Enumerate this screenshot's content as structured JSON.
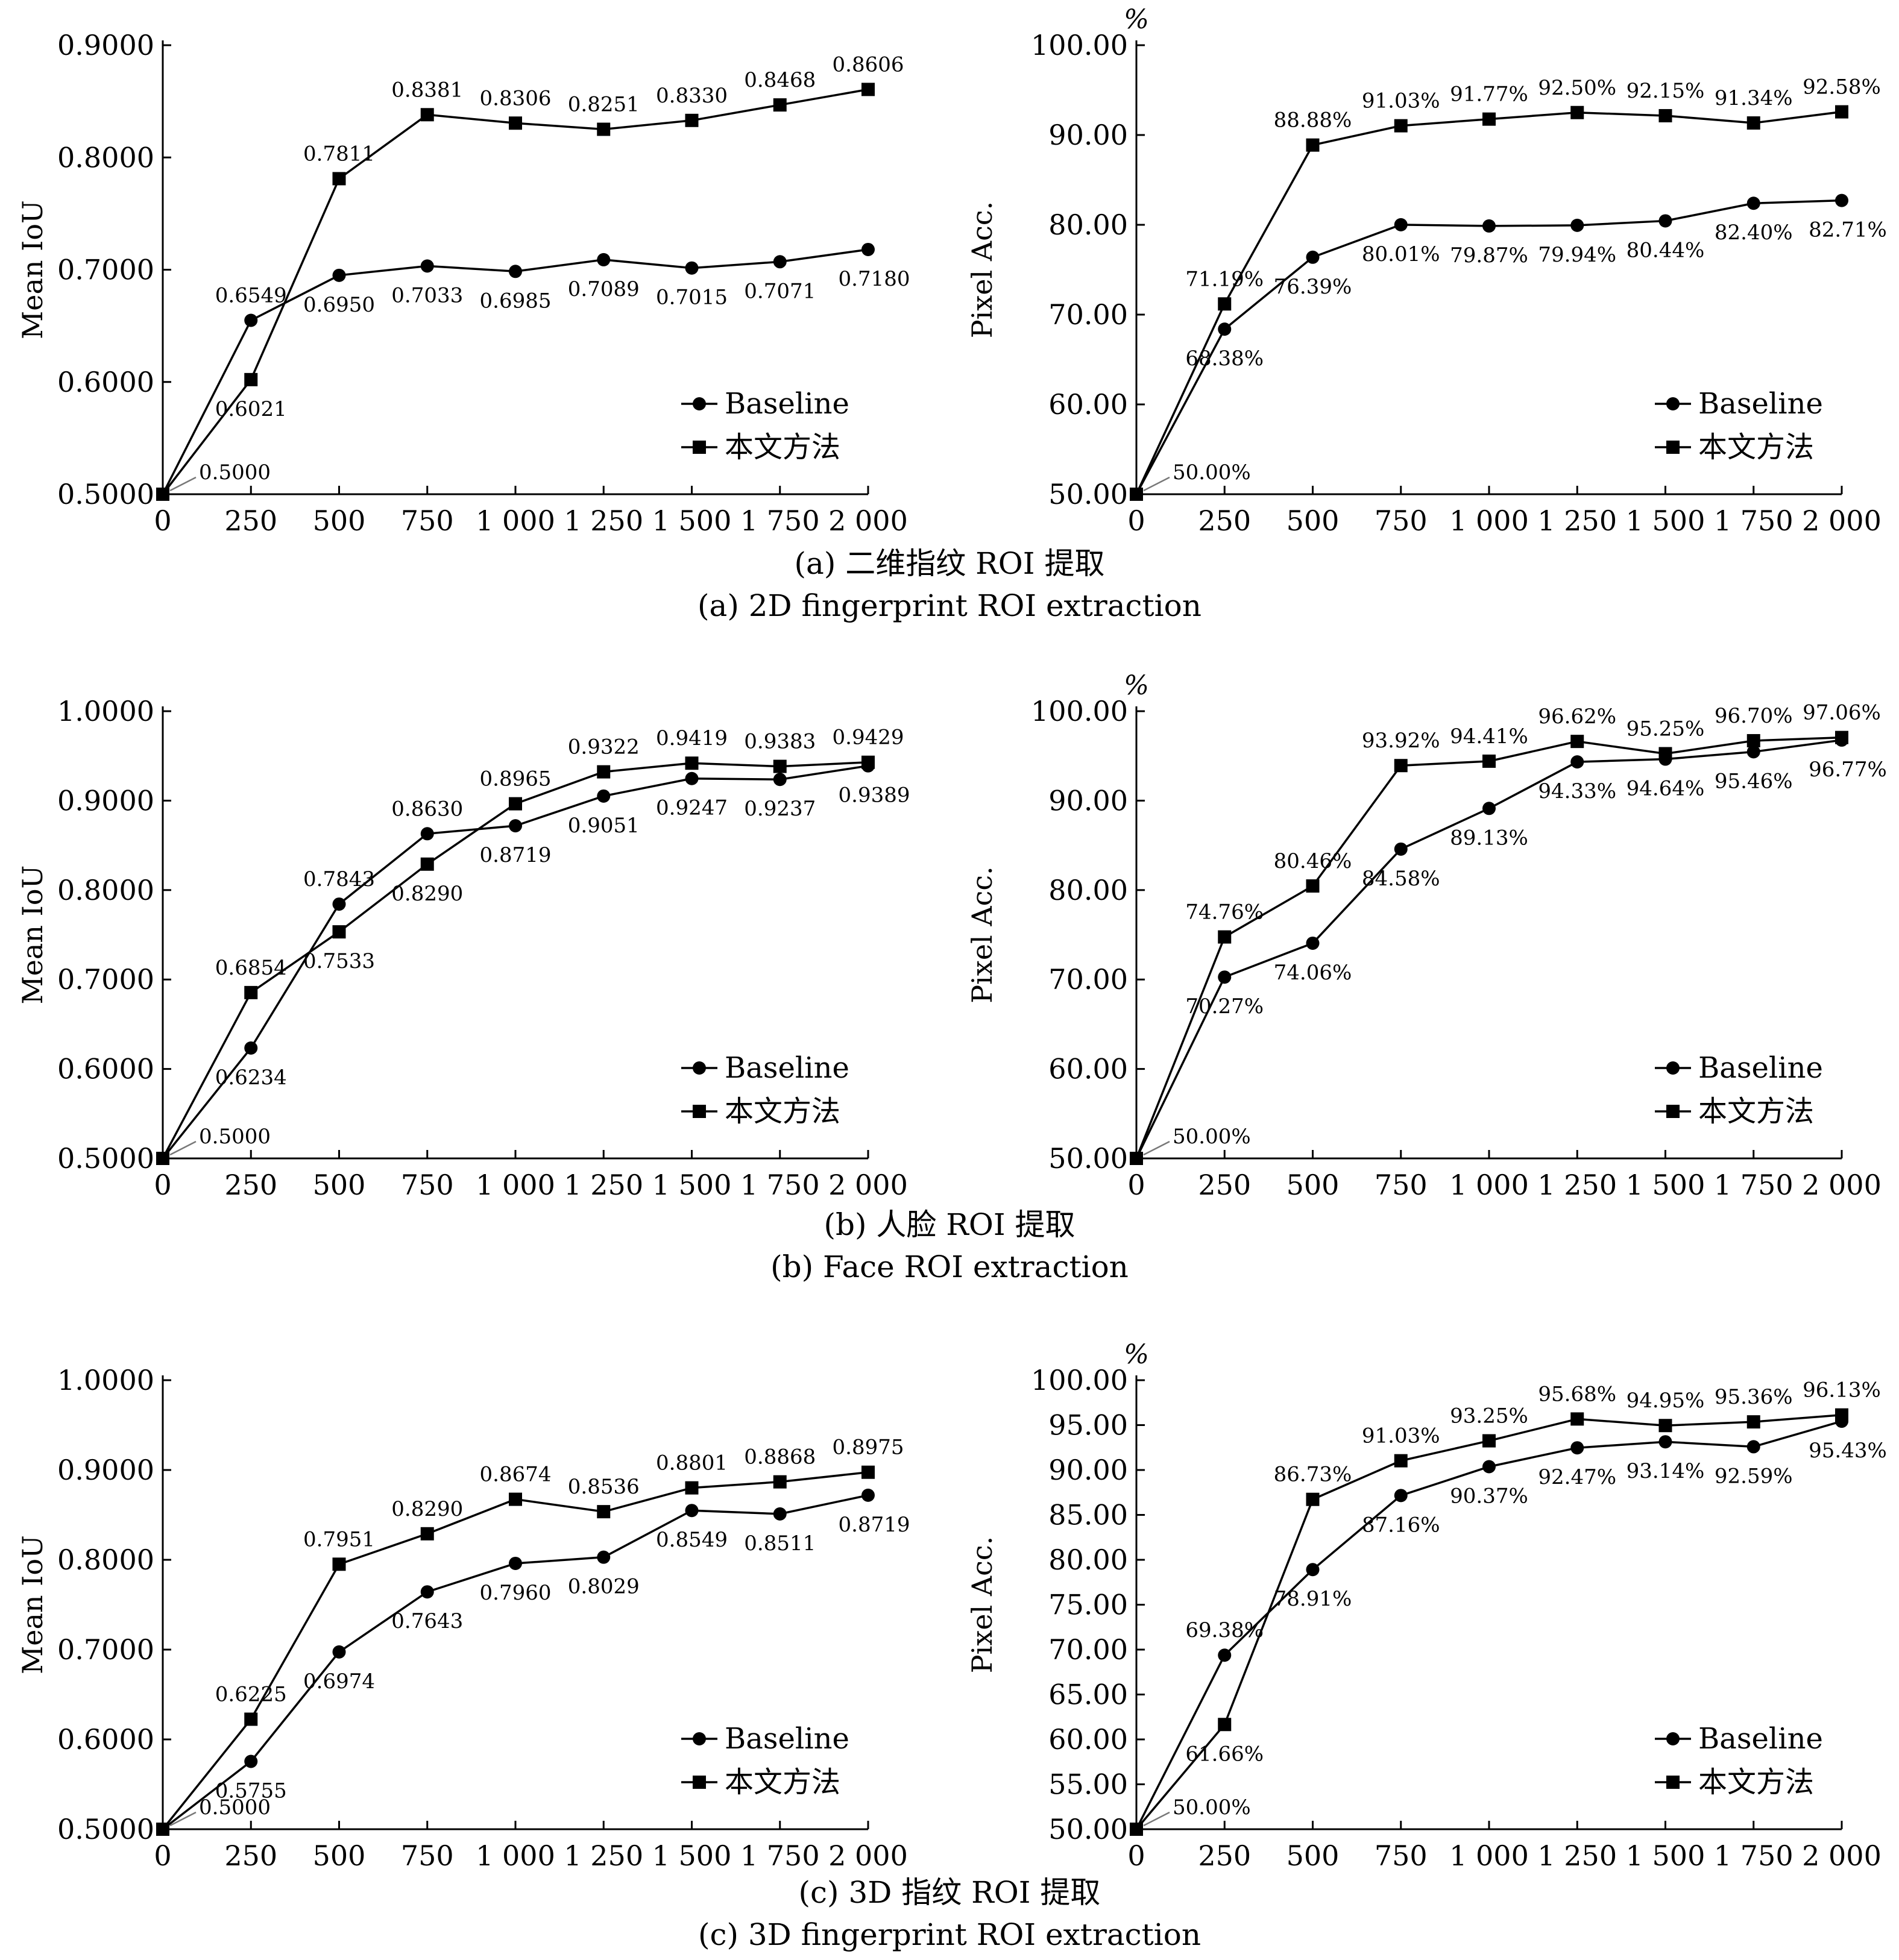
{
  "legend": {
    "baseline": "Baseline",
    "ours": "本文方法"
  },
  "panels": [
    {
      "cn_caption": "(a) 二维指纹 ROI 提取",
      "en_caption": "(a) 2D fingerprint ROI extraction",
      "charts": [
        {
          "type": "line",
          "ylabel": "Mean IoU",
          "unit": "",
          "xlim": [
            0,
            2000
          ],
          "ylim": [
            0.5,
            0.9
          ],
          "xticks": [
            "0",
            "250",
            "500",
            "750",
            "1 000",
            "1 250",
            "1 500",
            "1 750",
            "2 000"
          ],
          "yticks": [
            "0.5000",
            "0.6000",
            "0.7000",
            "0.8000",
            "0.9000"
          ],
          "x": [
            0,
            250,
            500,
            750,
            1000,
            1250,
            1500,
            1750,
            2000
          ],
          "series": [
            {
              "name": "Baseline",
              "marker": "circle",
              "values": [
                0.5,
                0.6549,
                0.695,
                0.7033,
                0.6985,
                0.7089,
                0.7015,
                0.7071,
                0.718
              ],
              "labels": [
                "0.5000",
                "0.6549",
                "0.6950",
                "0.7033",
                "0.6985",
                "0.7089",
                "0.7015",
                "0.7071",
                "0.7180"
              ]
            },
            {
              "name": "本文方法",
              "marker": "square",
              "values": [
                0.5,
                0.6021,
                0.7811,
                0.8381,
                0.8306,
                0.8251,
                0.833,
                0.8468,
                0.8606
              ],
              "labels": [
                "",
                "0.6021",
                "0.7811",
                "0.8381",
                "0.8306",
                "0.8251",
                "0.8330",
                "0.8468",
                "0.8606"
              ]
            }
          ]
        },
        {
          "type": "line",
          "ylabel": "Pixel Acc.",
          "unit": "%",
          "xlim": [
            0,
            2000
          ],
          "ylim": [
            50,
            100
          ],
          "xticks": [
            "0",
            "250",
            "500",
            "750",
            "1 000",
            "1 250",
            "1 500",
            "1 750",
            "2 000"
          ],
          "yticks": [
            "50.00",
            "60.00",
            "70.00",
            "80.00",
            "90.00",
            "100.00"
          ],
          "x": [
            0,
            250,
            500,
            750,
            1000,
            1250,
            1500,
            1750,
            2000
          ],
          "series": [
            {
              "name": "Baseline",
              "marker": "circle",
              "values": [
                50.0,
                68.38,
                76.39,
                80.01,
                79.87,
                79.94,
                80.44,
                82.4,
                82.71
              ],
              "labels": [
                "50.00%",
                "68.38%",
                "76.39%",
                "80.01%",
                "79.87%",
                "79.94%",
                "80.44%",
                "82.40%",
                "82.71%"
              ]
            },
            {
              "name": "本文方法",
              "marker": "square",
              "values": [
                50.0,
                71.19,
                88.88,
                91.03,
                91.77,
                92.5,
                92.15,
                91.34,
                92.58
              ],
              "labels": [
                "",
                "71.19%",
                "88.88%",
                "91.03%",
                "91.77%",
                "92.50%",
                "92.15%",
                "91.34%",
                "92.58%"
              ]
            }
          ]
        }
      ]
    },
    {
      "cn_caption": "(b) 人脸 ROI 提取",
      "en_caption": "(b) Face ROI extraction",
      "charts": [
        {
          "type": "line",
          "ylabel": "Mean IoU",
          "unit": "",
          "xlim": [
            0,
            2000
          ],
          "ylim": [
            0.5,
            1.0
          ],
          "xticks": [
            "0",
            "250",
            "500",
            "750",
            "1 000",
            "1 250",
            "1 500",
            "1 750",
            "2 000"
          ],
          "yticks": [
            "0.5000",
            "0.6000",
            "0.7000",
            "0.8000",
            "0.9000",
            "1.0000"
          ],
          "x": [
            0,
            250,
            500,
            750,
            1000,
            1250,
            1500,
            1750,
            2000
          ],
          "series": [
            {
              "name": "Baseline",
              "marker": "circle",
              "values": [
                0.5,
                0.6234,
                0.7843,
                0.863,
                0.8719,
                0.9051,
                0.9247,
                0.9237,
                0.9389
              ],
              "labels": [
                "0.5000",
                "0.6234",
                "0.7843",
                "0.8630",
                "0.8719",
                "0.9051",
                "0.9247",
                "0.9237",
                "0.9389"
              ]
            },
            {
              "name": "本文方法",
              "marker": "square",
              "values": [
                0.5,
                0.6854,
                0.7533,
                0.829,
                0.8965,
                0.9322,
                0.9419,
                0.9383,
                0.9429
              ],
              "labels": [
                "",
                "0.6854",
                "0.7533",
                "0.8290",
                "0.8965",
                "0.9322",
                "0.9419",
                "0.9383",
                "0.9429"
              ]
            }
          ]
        },
        {
          "type": "line",
          "ylabel": "Pixel Acc.",
          "unit": "%",
          "xlim": [
            0,
            2000
          ],
          "ylim": [
            50,
            100
          ],
          "xticks": [
            "0",
            "250",
            "500",
            "750",
            "1 000",
            "1 250",
            "1 500",
            "1 750",
            "2 000"
          ],
          "yticks": [
            "50.00",
            "60.00",
            "70.00",
            "80.00",
            "90.00",
            "100.00"
          ],
          "x": [
            0,
            250,
            500,
            750,
            1000,
            1250,
            1500,
            1750,
            2000
          ],
          "series": [
            {
              "name": "Baseline",
              "marker": "circle",
              "values": [
                50.0,
                70.27,
                74.06,
                84.58,
                89.13,
                94.33,
                94.64,
                95.46,
                96.77
              ],
              "labels": [
                "50.00%",
                "70.27%",
                "74.06%",
                "84.58%",
                "89.13%",
                "94.33%",
                "94.64%",
                "95.46%",
                "96.77%"
              ]
            },
            {
              "name": "本文方法",
              "marker": "square",
              "values": [
                50.0,
                74.76,
                80.46,
                93.92,
                94.41,
                96.62,
                95.25,
                96.7,
                97.06
              ],
              "labels": [
                "",
                "74.76%",
                "80.46%",
                "93.92%",
                "94.41%",
                "96.62%",
                "95.25%",
                "96.70%",
                "97.06%"
              ]
            }
          ]
        }
      ]
    },
    {
      "cn_caption": "(c) 3D 指纹 ROI 提取",
      "en_caption": "(c) 3D fingerprint ROI extraction",
      "charts": [
        {
          "type": "line",
          "ylabel": "Mean IoU",
          "unit": "",
          "xlim": [
            0,
            2000
          ],
          "ylim": [
            0.5,
            1.0
          ],
          "xticks": [
            "0",
            "250",
            "500",
            "750",
            "1 000",
            "1 250",
            "1 500",
            "1 750",
            "2 000"
          ],
          "yticks": [
            "0.5000",
            "0.6000",
            "0.7000",
            "0.8000",
            "0.9000",
            "1.0000"
          ],
          "x": [
            0,
            250,
            500,
            750,
            1000,
            1250,
            1500,
            1750,
            2000
          ],
          "series": [
            {
              "name": "Baseline",
              "marker": "circle",
              "values": [
                0.5,
                0.5755,
                0.6974,
                0.7643,
                0.796,
                0.8029,
                0.8549,
                0.8511,
                0.8719
              ],
              "labels": [
                "0.5000",
                "0.5755",
                "0.6974",
                "0.7643",
                "0.7960",
                "0.8029",
                "0.8549",
                "0.8511",
                "0.8719"
              ]
            },
            {
              "name": "本文方法",
              "marker": "square",
              "values": [
                0.5,
                0.6225,
                0.7951,
                0.829,
                0.8674,
                0.8536,
                0.8801,
                0.8868,
                0.8975
              ],
              "labels": [
                "",
                "0.6225",
                "0.7951",
                "0.8290",
                "0.8674",
                "0.8536",
                "0.8801",
                "0.8868",
                "0.8975"
              ]
            }
          ]
        },
        {
          "type": "line",
          "ylabel": "Pixel Acc.",
          "unit": "%",
          "xlim": [
            0,
            2000
          ],
          "ylim": [
            50,
            100
          ],
          "xticks": [
            "0",
            "250",
            "500",
            "750",
            "1 000",
            "1 250",
            "1 500",
            "1 750",
            "2 000"
          ],
          "yticks": [
            "50.00",
            "55.00",
            "60.00",
            "65.00",
            "70.00",
            "75.00",
            "80.00",
            "85.00",
            "90.00",
            "95.00",
            "100.00"
          ],
          "x": [
            0,
            250,
            500,
            750,
            1000,
            1250,
            1500,
            1750,
            2000
          ],
          "series": [
            {
              "name": "Baseline",
              "marker": "circle",
              "values": [
                50.0,
                69.38,
                78.91,
                87.16,
                90.37,
                92.47,
                93.14,
                92.59,
                95.43
              ],
              "labels": [
                "50.00%",
                "69.38%",
                "78.91%",
                "87.16%",
                "90.37%",
                "92.47%",
                "93.14%",
                "92.59%",
                "95.43%"
              ]
            },
            {
              "name": "本文方法",
              "marker": "square",
              "values": [
                50.0,
                61.66,
                86.73,
                91.03,
                93.25,
                95.68,
                94.95,
                95.36,
                96.13
              ],
              "labels": [
                "",
                "61.66%",
                "86.73%",
                "91.03%",
                "93.25%",
                "95.68%",
                "94.95%",
                "95.36%",
                "96.13%"
              ]
            }
          ]
        }
      ]
    }
  ],
  "chart_data": [
    {
      "type": "line",
      "ylabel": "Mean IoU",
      "xlim": [
        0,
        2000
      ],
      "ylim": [
        0.5,
        0.9
      ],
      "x": [
        0,
        250,
        500,
        750,
        1000,
        1250,
        1500,
        1750,
        2000
      ],
      "series": [
        {
          "name": "Baseline",
          "values": [
            0.5,
            0.6549,
            0.695,
            0.7033,
            0.6985,
            0.7089,
            0.7015,
            0.7071,
            0.718
          ]
        },
        {
          "name": "本文方法",
          "values": [
            0.5,
            0.6021,
            0.7811,
            0.8381,
            0.8306,
            0.8251,
            0.833,
            0.8468,
            0.8606
          ]
        }
      ]
    },
    {
      "type": "line",
      "ylabel": "Pixel Acc.",
      "xlim": [
        0,
        2000
      ],
      "ylim": [
        50,
        100
      ],
      "x": [
        0,
        250,
        500,
        750,
        1000,
        1250,
        1500,
        1750,
        2000
      ],
      "series": [
        {
          "name": "Baseline",
          "values": [
            50.0,
            68.38,
            76.39,
            80.01,
            79.87,
            79.94,
            80.44,
            82.4,
            82.71
          ]
        },
        {
          "name": "本文方法",
          "values": [
            50.0,
            71.19,
            88.88,
            91.03,
            91.77,
            92.5,
            92.15,
            91.34,
            92.58
          ]
        }
      ]
    },
    {
      "type": "line",
      "ylabel": "Mean IoU",
      "xlim": [
        0,
        2000
      ],
      "ylim": [
        0.5,
        1.0
      ],
      "x": [
        0,
        250,
        500,
        750,
        1000,
        1250,
        1500,
        1750,
        2000
      ],
      "series": [
        {
          "name": "Baseline",
          "values": [
            0.5,
            0.6234,
            0.7843,
            0.863,
            0.8719,
            0.9051,
            0.9247,
            0.9237,
            0.9389
          ]
        },
        {
          "name": "本文方法",
          "values": [
            0.5,
            0.6854,
            0.7533,
            0.829,
            0.8965,
            0.9322,
            0.9419,
            0.9383,
            0.9429
          ]
        }
      ]
    },
    {
      "type": "line",
      "ylabel": "Pixel Acc.",
      "xlim": [
        0,
        2000
      ],
      "ylim": [
        50,
        100
      ],
      "x": [
        0,
        250,
        500,
        750,
        1000,
        1250,
        1500,
        1750,
        2000
      ],
      "series": [
        {
          "name": "Baseline",
          "values": [
            50.0,
            70.27,
            74.06,
            84.58,
            89.13,
            94.33,
            94.64,
            95.46,
            96.77
          ]
        },
        {
          "name": "本文方法",
          "values": [
            50.0,
            74.76,
            80.46,
            93.92,
            94.41,
            96.62,
            95.25,
            96.7,
            97.06
          ]
        }
      ]
    },
    {
      "type": "line",
      "ylabel": "Mean IoU",
      "xlim": [
        0,
        2000
      ],
      "ylim": [
        0.5,
        1.0
      ],
      "x": [
        0,
        250,
        500,
        750,
        1000,
        1250,
        1500,
        1750,
        2000
      ],
      "series": [
        {
          "name": "Baseline",
          "values": [
            0.5,
            0.5755,
            0.6974,
            0.7643,
            0.796,
            0.8029,
            0.8549,
            0.8511,
            0.8719
          ]
        },
        {
          "name": "本文方法",
          "values": [
            0.5,
            0.6225,
            0.7951,
            0.829,
            0.8674,
            0.8536,
            0.8801,
            0.8868,
            0.8975
          ]
        }
      ]
    },
    {
      "type": "line",
      "ylabel": "Pixel Acc.",
      "xlim": [
        0,
        2000
      ],
      "ylim": [
        50,
        100
      ],
      "x": [
        0,
        250,
        500,
        750,
        1000,
        1250,
        1500,
        1750,
        2000
      ],
      "series": [
        {
          "name": "Baseline",
          "values": [
            50.0,
            69.38,
            78.91,
            87.16,
            90.37,
            92.47,
            93.14,
            92.59,
            95.43
          ]
        },
        {
          "name": "本文方法",
          "values": [
            50.0,
            61.66,
            86.73,
            91.03,
            93.25,
            95.68,
            94.95,
            95.36,
            96.13
          ]
        }
      ]
    }
  ]
}
